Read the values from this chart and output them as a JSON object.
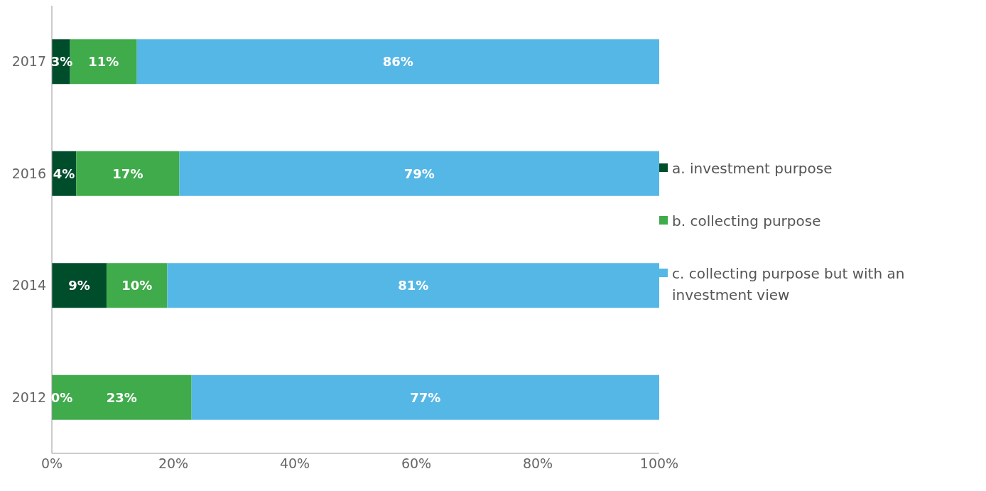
{
  "chart_data": {
    "type": "bar",
    "orientation": "horizontal",
    "stacked": true,
    "categories": [
      "2017",
      "2016",
      "2014",
      "2012"
    ],
    "series": [
      {
        "name": "a. investment purpose",
        "color": "#004d2c",
        "values": [
          3,
          4,
          9,
          0
        ],
        "value_labels": [
          "3%",
          "4%",
          "9%",
          "0%"
        ]
      },
      {
        "name": "b. collecting purpose",
        "color": "#3fab4b",
        "values": [
          11,
          17,
          10,
          23
        ],
        "value_labels": [
          "11%",
          "17%",
          "10%",
          "23%"
        ]
      },
      {
        "name": "c. collecting purpose but with an investment view",
        "color": "#55b7e6",
        "values": [
          86,
          79,
          81,
          77
        ],
        "value_labels": [
          "86%",
          "79%",
          "81%",
          "77%"
        ]
      }
    ],
    "xlim": [
      0,
      100
    ],
    "xticks": [
      {
        "value": 0,
        "label": "0%"
      },
      {
        "value": 20,
        "label": "20%"
      },
      {
        "value": 40,
        "label": "40%"
      },
      {
        "value": 60,
        "label": "60%"
      },
      {
        "value": 80,
        "label": "80%"
      },
      {
        "value": 100,
        "label": "100%"
      }
    ],
    "grid": false,
    "legend": "right"
  }
}
